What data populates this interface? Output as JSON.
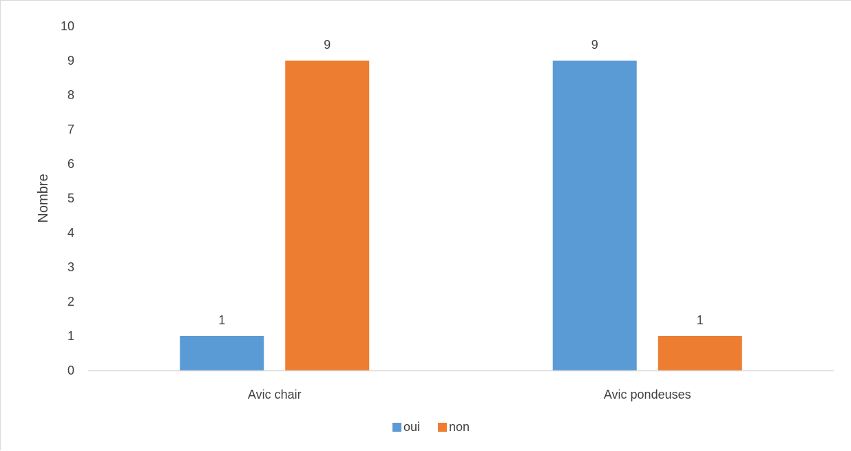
{
  "chart_data": {
    "type": "bar",
    "title": "",
    "xlabel": "",
    "ylabel": "Nombre",
    "categories": [
      "Avic chair",
      "Avic pondeuses"
    ],
    "series": [
      {
        "name": "oui",
        "values": [
          1,
          9
        ],
        "color": "#5b9bd5"
      },
      {
        "name": "non",
        "values": [
          9,
          1
        ],
        "color": "#ed7d31"
      }
    ],
    "ylim": [
      0,
      10
    ],
    "yticks": [
      "0",
      "1",
      "2",
      "3",
      "4",
      "5",
      "6",
      "7",
      "8",
      "9",
      "10"
    ],
    "data_labels": [
      [
        "1",
        "9"
      ],
      [
        "9",
        "1"
      ]
    ],
    "grid": false,
    "legend": "bottom"
  }
}
